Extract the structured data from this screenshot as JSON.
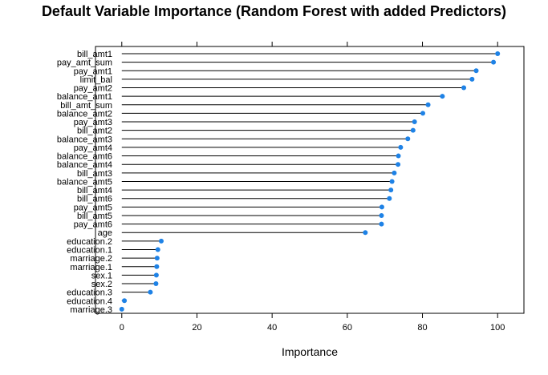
{
  "chart_data": {
    "type": "dotplot",
    "title": "Default Variable Importance (Random Forest with added Predictors)",
    "xlabel": "Importance",
    "ylabel": "",
    "xlim": [
      -7,
      107
    ],
    "x_ticks": [
      0,
      20,
      40,
      60,
      80,
      100
    ],
    "grid": false,
    "point_color": "#1E82E6",
    "categories": [
      "bill_amt1",
      "pay_amt_sum",
      "pay_amt1",
      "limit_bal",
      "pay_amt2",
      "balance_amt1",
      "bill_amt_sum",
      "balance_amt2",
      "pay_amt3",
      "bill_amt2",
      "balance_amt3",
      "pay_amt4",
      "balance_amt6",
      "balance_amt4",
      "bill_amt3",
      "balance_amt5",
      "bill_amt4",
      "bill_amt6",
      "pay_amt5",
      "bill_amt5",
      "pay_amt6",
      "age",
      "education.2",
      "education.1",
      "marriage.2",
      "marriage.1",
      "sex.1",
      "sex.2",
      "education.3",
      "education.4",
      "marriage.3"
    ],
    "values": [
      100,
      98.9,
      94.3,
      93.2,
      91.0,
      85.3,
      81.5,
      80.1,
      77.9,
      77.5,
      76.1,
      74.2,
      73.6,
      73.5,
      72.5,
      71.9,
      71.6,
      71.2,
      69.2,
      69.1,
      69.1,
      64.8,
      10.5,
      9.6,
      9.4,
      9.3,
      9.2,
      9.1,
      7.6,
      0.7,
      0
    ]
  }
}
